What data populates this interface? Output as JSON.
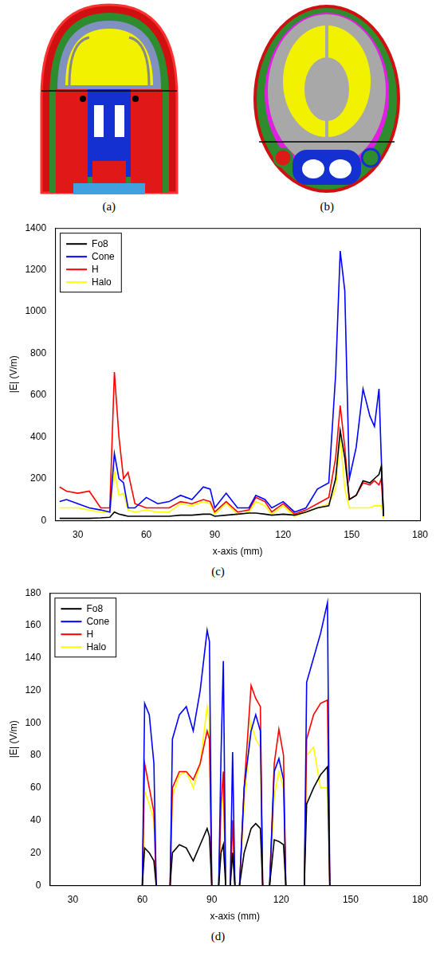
{
  "images": [
    "(a)",
    "(b)"
  ],
  "chart_data": [
    {
      "type": "line",
      "caption": "(c)",
      "x_label": "x-axis (mm)",
      "y_label": "|E| (V/m)",
      "x": [
        22,
        25,
        30,
        35,
        40,
        44,
        46,
        48,
        50,
        52,
        55,
        60,
        65,
        70,
        75,
        80,
        85,
        88,
        90,
        95,
        100,
        105,
        108,
        112,
        115,
        120,
        125,
        130,
        135,
        140,
        143,
        145,
        147,
        149,
        152,
        155,
        158,
        160,
        162,
        163,
        164
      ],
      "series": [
        {
          "name": "Fo8",
          "color": "#000000",
          "values": [
            10,
            10,
            10,
            10,
            12,
            15,
            40,
            30,
            25,
            20,
            20,
            20,
            20,
            20,
            25,
            25,
            30,
            30,
            20,
            25,
            30,
            35,
            35,
            30,
            25,
            30,
            25,
            40,
            60,
            70,
            200,
            430,
            300,
            100,
            120,
            190,
            180,
            200,
            220,
            260,
            20
          ]
        },
        {
          "name": "Cone",
          "color": "#0000ff",
          "values": [
            90,
            100,
            80,
            60,
            50,
            40,
            320,
            200,
            180,
            60,
            60,
            110,
            80,
            90,
            120,
            100,
            160,
            150,
            60,
            130,
            60,
            60,
            120,
            100,
            60,
            90,
            40,
            60,
            150,
            180,
            700,
            1290,
            1100,
            200,
            350,
            630,
            500,
            450,
            630,
            300,
            20
          ]
        },
        {
          "name": "H",
          "color": "#ff0000",
          "values": [
            160,
            140,
            130,
            140,
            60,
            60,
            710,
            400,
            200,
            230,
            80,
            60,
            60,
            60,
            90,
            80,
            100,
            90,
            40,
            90,
            40,
            50,
            110,
            90,
            40,
            80,
            30,
            50,
            80,
            110,
            300,
            550,
            350,
            100,
            120,
            180,
            170,
            190,
            170,
            200,
            20
          ]
        },
        {
          "name": "Halo",
          "color": "#ffff00",
          "values": [
            60,
            60,
            60,
            50,
            40,
            40,
            240,
            120,
            130,
            50,
            40,
            50,
            40,
            40,
            80,
            70,
            90,
            80,
            30,
            80,
            30,
            40,
            90,
            70,
            30,
            70,
            20,
            40,
            60,
            80,
            150,
            400,
            150,
            60,
            60,
            60,
            60,
            70,
            70,
            70,
            10
          ]
        }
      ],
      "xlim": [
        20,
        180
      ],
      "xticks": [
        30,
        60,
        90,
        120,
        150,
        180
      ],
      "ylim": [
        0,
        1400
      ],
      "yticks": [
        0,
        200,
        400,
        600,
        800,
        1000,
        1200,
        1400
      ],
      "grid": false,
      "legend": "upper left"
    },
    {
      "type": "line",
      "caption": "(d)",
      "x_label": "x-axis (mm)",
      "y_label": "|E| (V/m)",
      "x": [
        60,
        61,
        63,
        65,
        66,
        68,
        72,
        73,
        76,
        79,
        82,
        85,
        88,
        89,
        90,
        92,
        93,
        94,
        95,
        96,
        97,
        98,
        99,
        100,
        101,
        102,
        104,
        107,
        109,
        111,
        112,
        114,
        115,
        117,
        119,
        121,
        122,
        126,
        130,
        131,
        134,
        137,
        140,
        141
      ],
      "series": [
        {
          "name": "Fo8",
          "color": "#000000",
          "values": [
            0,
            23,
            20,
            15,
            0,
            null,
            0,
            20,
            25,
            23,
            15,
            25,
            35,
            30,
            0,
            null,
            0,
            20,
            25,
            0,
            null,
            0,
            20,
            0,
            null,
            0,
            20,
            35,
            38,
            35,
            0,
            null,
            0,
            28,
            27,
            25,
            0,
            null,
            0,
            50,
            60,
            68,
            73,
            0
          ]
        },
        {
          "name": "Cone",
          "color": "#0000ff",
          "values": [
            0,
            112,
            105,
            75,
            0,
            null,
            0,
            90,
            105,
            110,
            95,
            120,
            157,
            150,
            0,
            null,
            0,
            80,
            138,
            0,
            null,
            0,
            82,
            0,
            null,
            0,
            60,
            95,
            105,
            95,
            0,
            null,
            0,
            70,
            78,
            65,
            0,
            null,
            0,
            125,
            140,
            155,
            174,
            0
          ]
        },
        {
          "name": "H",
          "color": "#ff0000",
          "values": [
            0,
            75,
            60,
            45,
            0,
            null,
            0,
            60,
            70,
            70,
            65,
            75,
            95,
            90,
            0,
            null,
            0,
            50,
            70,
            0,
            null,
            0,
            40,
            0,
            null,
            0,
            60,
            123,
            115,
            110,
            0,
            null,
            0,
            75,
            96,
            80,
            0,
            null,
            0,
            90,
            105,
            112,
            114,
            0
          ]
        },
        {
          "name": "Halo",
          "color": "#ffff00",
          "values": [
            0,
            58,
            50,
            40,
            0,
            null,
            0,
            55,
            68,
            70,
            60,
            75,
            110,
            100,
            0,
            null,
            0,
            45,
            60,
            0,
            null,
            0,
            35,
            0,
            null,
            0,
            50,
            100,
            90,
            85,
            0,
            null,
            0,
            55,
            70,
            60,
            0,
            null,
            0,
            80,
            85,
            60,
            60,
            0
          ]
        }
      ],
      "xlim": [
        20,
        180
      ],
      "xticks": [
        30,
        60,
        90,
        120,
        150,
        180
      ],
      "ylim": [
        0,
        180
      ],
      "yticks": [
        0,
        20,
        40,
        60,
        80,
        100,
        120,
        140,
        160,
        180
      ],
      "grid": false,
      "legend": "upper left"
    }
  ]
}
